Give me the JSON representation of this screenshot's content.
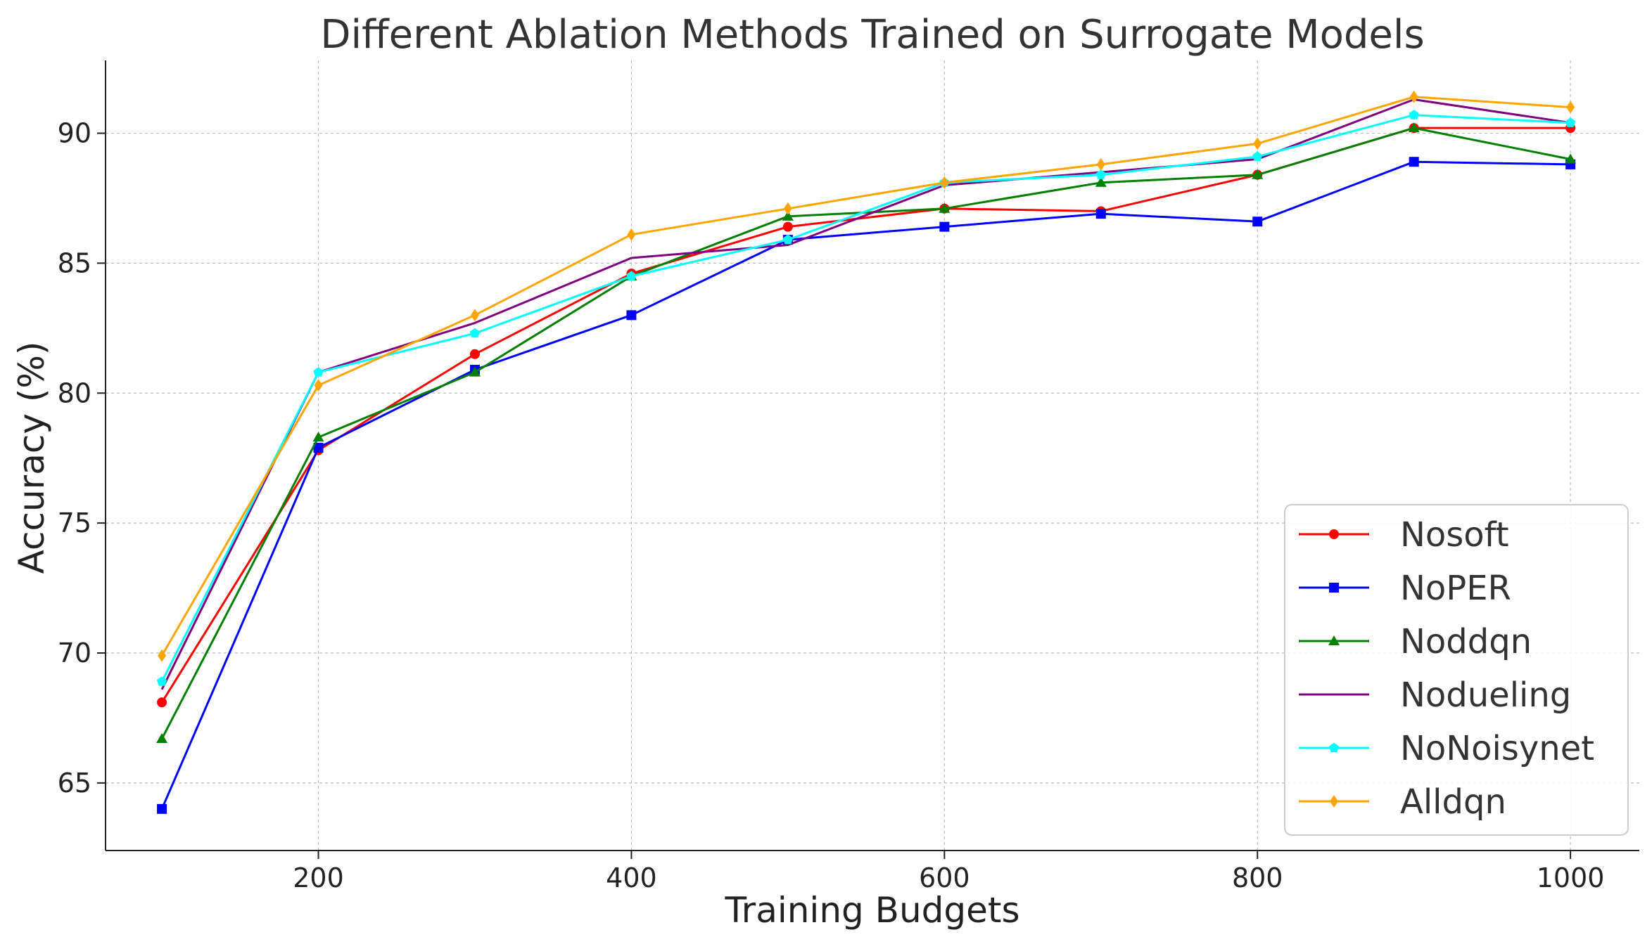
{
  "chart_data": {
    "type": "line",
    "title": "Different Ablation Methods Trained on Surrogate Models",
    "xlabel": "Training Budgets",
    "ylabel": "Accuracy (%)",
    "xlim": [
      64,
      1044
    ],
    "ylim": [
      62.4,
      92.8
    ],
    "xticks": [
      200,
      400,
      600,
      800,
      1000
    ],
    "yticks": [
      65,
      70,
      75,
      80,
      85,
      90
    ],
    "grid": true,
    "legend_position": "lower-right",
    "x": [
      100,
      200,
      300,
      400,
      500,
      600,
      700,
      800,
      900,
      1000
    ],
    "series": [
      {
        "name": "Nosoft",
        "color": "#ff0000",
        "marker": "circle",
        "values": [
          68.1,
          77.8,
          81.5,
          84.6,
          86.4,
          87.1,
          87.0,
          88.4,
          90.2,
          90.2
        ]
      },
      {
        "name": "NoPER",
        "color": "#0000ff",
        "marker": "square",
        "values": [
          64.0,
          77.9,
          80.9,
          83.0,
          85.9,
          86.4,
          86.9,
          86.6,
          88.9,
          88.8
        ]
      },
      {
        "name": "Noddqn",
        "color": "#008000",
        "marker": "triangle",
        "values": [
          66.7,
          78.3,
          80.8,
          84.5,
          86.8,
          87.1,
          88.1,
          88.4,
          90.2,
          89.0
        ]
      },
      {
        "name": "Nodueling",
        "color": "#800080",
        "marker": "none",
        "values": [
          68.6,
          80.8,
          82.7,
          85.2,
          85.7,
          88.0,
          88.5,
          89.0,
          91.3,
          90.4
        ]
      },
      {
        "name": "NoNoisynet",
        "color": "#00ffff",
        "marker": "pentagon",
        "values": [
          68.9,
          80.8,
          82.3,
          84.5,
          85.9,
          88.1,
          88.4,
          89.1,
          90.7,
          90.4
        ]
      },
      {
        "name": "Alldqn",
        "color": "#ffa500",
        "marker": "diamond",
        "values": [
          69.9,
          80.3,
          83.0,
          86.1,
          87.1,
          88.1,
          88.8,
          89.6,
          91.4,
          91.0
        ]
      }
    ]
  }
}
